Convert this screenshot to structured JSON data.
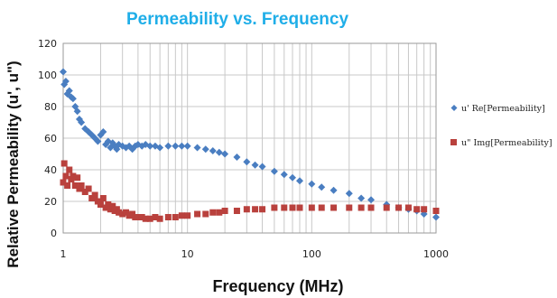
{
  "chart_data": {
    "type": "scatter",
    "title": "Permeability vs. Frequency",
    "xlabel": "Frequency (MHz)",
    "ylabel": "Relative Permeability (u', u\")",
    "x_scale": "log",
    "xlim": [
      1,
      1000
    ],
    "ylim": [
      0,
      120
    ],
    "x_ticks": [
      "1",
      "10",
      "100",
      "1000"
    ],
    "y_ticks": [
      "0",
      "20",
      "40",
      "60",
      "80",
      "100",
      "120"
    ],
    "grid": true,
    "legend_position": "right",
    "series": [
      {
        "name": "u' Re[Permeability]",
        "color": "#4a7ec1",
        "marker": "diamond",
        "x": [
          1.0,
          1.02,
          1.05,
          1.08,
          1.12,
          1.16,
          1.2,
          1.25,
          1.3,
          1.35,
          1.4,
          1.5,
          1.6,
          1.7,
          1.8,
          1.9,
          2.0,
          2.1,
          2.2,
          2.3,
          2.4,
          2.5,
          2.6,
          2.7,
          2.8,
          3.0,
          3.2,
          3.4,
          3.6,
          3.8,
          4.0,
          4.3,
          4.6,
          5.0,
          5.5,
          6.0,
          7.0,
          8.0,
          9.0,
          10,
          12,
          14,
          16,
          18,
          20,
          25,
          30,
          35,
          40,
          50,
          60,
          70,
          80,
          100,
          120,
          150,
          200,
          250,
          300,
          400,
          500,
          600,
          700,
          800,
          1000
        ],
        "y": [
          102,
          94,
          96,
          88,
          90,
          86,
          85,
          80,
          77,
          72,
          70,
          66,
          64,
          62,
          60,
          58,
          62,
          64,
          56,
          58,
          54,
          57,
          55,
          53,
          56,
          55,
          54,
          55,
          53,
          55,
          56,
          55,
          56,
          55,
          55,
          54,
          55,
          55,
          55,
          55,
          54,
          53,
          52,
          51,
          50,
          48,
          45,
          43,
          42,
          39,
          37,
          35,
          33,
          31,
          29,
          27,
          25,
          22,
          21,
          18,
          16,
          15,
          14,
          12,
          10
        ]
      },
      {
        "name": "u\" Img[Permeability]",
        "color": "#b9413d",
        "marker": "square",
        "x": [
          1.0,
          1.02,
          1.05,
          1.08,
          1.12,
          1.16,
          1.2,
          1.25,
          1.3,
          1.35,
          1.4,
          1.5,
          1.6,
          1.7,
          1.8,
          1.9,
          2.0,
          2.1,
          2.2,
          2.3,
          2.4,
          2.5,
          2.6,
          2.7,
          2.8,
          3.0,
          3.2,
          3.4,
          3.6,
          3.8,
          4.0,
          4.3,
          4.6,
          5.0,
          5.5,
          6.0,
          7.0,
          8.0,
          9.0,
          10,
          12,
          14,
          16,
          18,
          20,
          25,
          30,
          35,
          40,
          50,
          60,
          70,
          80,
          100,
          120,
          150,
          200,
          250,
          300,
          400,
          500,
          600,
          700,
          800,
          1000
        ],
        "y": [
          32,
          44,
          36,
          30,
          40,
          34,
          36,
          30,
          35,
          28,
          30,
          26,
          28,
          22,
          24,
          20,
          18,
          22,
          16,
          18,
          15,
          17,
          14,
          15,
          13,
          12,
          13,
          11,
          12,
          10,
          10,
          10,
          9,
          9,
          10,
          9,
          10,
          10,
          11,
          11,
          12,
          12,
          13,
          13,
          14,
          14,
          15,
          15,
          15,
          16,
          16,
          16,
          16,
          16,
          16,
          16,
          16,
          16,
          16,
          16,
          16,
          16,
          15,
          15,
          14
        ]
      }
    ]
  }
}
